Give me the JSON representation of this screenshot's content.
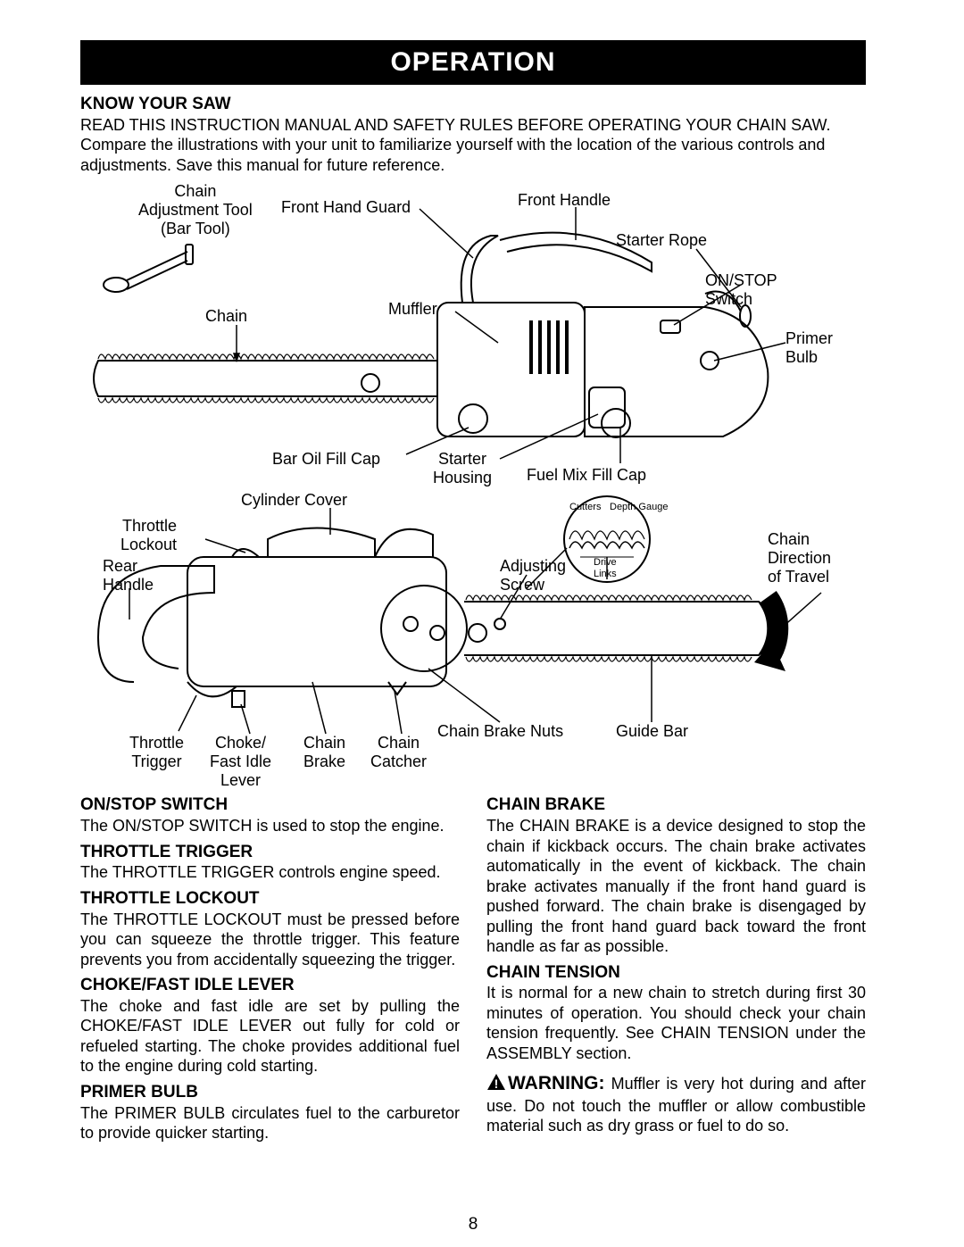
{
  "title": "OPERATION",
  "intro_title": "KNOW YOUR SAW",
  "intro_body": "READ THIS INSTRUCTION MANUAL AND SAFETY RULES BEFORE OPERATING YOUR CHAIN SAW. Compare the illustrations with your unit to familiarize yourself with the location of the various controls and adjustments. Save this manual for future reference.",
  "labels": {
    "chain_adj_tool": "Chain\nAdjustment Tool\n(Bar Tool)",
    "front_hand_guard": "Front Hand Guard",
    "front_handle": "Front Handle",
    "starter_rope": "Starter Rope",
    "on_stop_switch": "ON/STOP\nSwitch",
    "primer_bulb": "Primer\nBulb",
    "muffler": "Muffler",
    "chain": "Chain",
    "bar_oil_fill_cap": "Bar Oil Fill Cap",
    "starter_housing": "Starter\nHousing",
    "fuel_mix_fill_cap": "Fuel Mix Fill Cap",
    "cylinder_cover": "Cylinder Cover",
    "throttle_lockout": "Throttle\nLockout",
    "rear_handle": "Rear\nHandle",
    "adjusting_screw": "Adjusting\nScrew",
    "chain_direction": "Chain\nDirection\nof Travel",
    "throttle_trigger": "Throttle\nTrigger",
    "choke_fast_idle": "Choke/\nFast Idle\nLever",
    "chain_brake": "Chain\nBrake",
    "chain_catcher": "Chain\nCatcher",
    "chain_brake_nuts": "Chain Brake Nuts",
    "guide_bar": "Guide Bar",
    "cutters": "Cutters",
    "depth_gauge": "Depth Gauge",
    "drive_links": "Drive\nLinks"
  },
  "sections": {
    "left": [
      {
        "title": "ON/STOP SWITCH",
        "body": "The ON/STOP SWITCH is used to stop the engine."
      },
      {
        "title": "THROTTLE TRIGGER",
        "body": "The THROTTLE TRIGGER controls engine speed."
      },
      {
        "title": "THROTTLE LOCKOUT",
        "body": "The THROTTLE LOCKOUT must be pressed before you can squeeze the throttle trigger. This feature prevents you from accidentally squeezing the trigger."
      },
      {
        "title": "CHOKE/FAST IDLE LEVER",
        "body": "The choke and fast idle are set by pulling the CHOKE/FAST IDLE LEVER out fully for cold or refueled starting. The choke provides additional fuel to the engine during cold starting."
      },
      {
        "title": "PRIMER BULB",
        "body": "The PRIMER BULB circulates fuel to the carburetor to provide quicker starting."
      }
    ],
    "right": [
      {
        "title": "CHAIN BRAKE",
        "body": "The CHAIN BRAKE is a device designed to stop the chain if kickback occurs. The chain brake activates automatically in the event of kickback. The chain brake activates manually if the front hand guard is pushed forward. The chain brake is disengaged by pulling the front hand guard back toward the front handle as far as possible."
      },
      {
        "title": "CHAIN TENSION",
        "body": "It is normal for a new chain to stretch during first 30 minutes of operation. You should check your chain tension frequently. See CHAIN TENSION under the ASSEMBLY section."
      }
    ]
  },
  "warning_label": "WARNING:",
  "warning_body": "Muffler is very hot during and after use. Do not touch the muffler or allow combustible material such as dry grass or fuel to do so.",
  "page_number": "8",
  "colors": {
    "title_bg": "#000000",
    "title_fg": "#ffffff",
    "text": "#000000",
    "bg": "#ffffff",
    "stroke": "#000000"
  }
}
